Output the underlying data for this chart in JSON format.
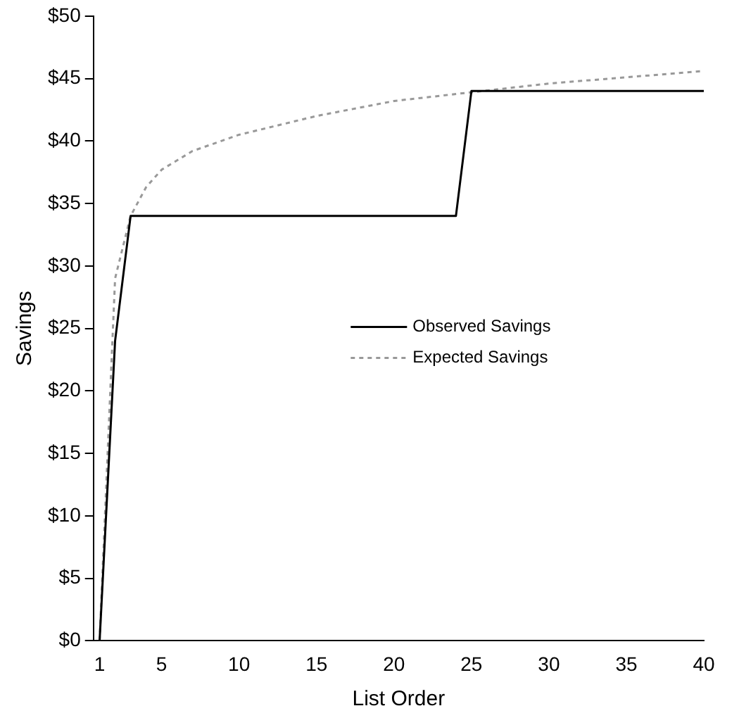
{
  "chart_data": {
    "type": "line",
    "xlabel": "List Order",
    "ylabel": "Savings",
    "xlim": [
      0.6,
      40
    ],
    "xticks": [
      1,
      5,
      10,
      15,
      20,
      25,
      30,
      35,
      40
    ],
    "ylim": [
      0,
      50
    ],
    "yticks": [
      {
        "value": 0,
        "label": "$0"
      },
      {
        "value": 5,
        "label": "$5"
      },
      {
        "value": 10,
        "label": "$10"
      },
      {
        "value": 15,
        "label": "$15"
      },
      {
        "value": 20,
        "label": "$20"
      },
      {
        "value": 25,
        "label": "$25"
      },
      {
        "value": 30,
        "label": "$30"
      },
      {
        "value": 35,
        "label": "$35"
      },
      {
        "value": 40,
        "label": "$40"
      },
      {
        "value": 45,
        "label": "$45"
      },
      {
        "value": 50,
        "label": "$50"
      }
    ],
    "grid": false,
    "legend": "center",
    "marker": "none",
    "series": [
      {
        "name": "Observed Savings",
        "color": "#000000",
        "line_style": "solid",
        "x": [
          1,
          2,
          3,
          24,
          25,
          40
        ],
        "values": [
          0,
          24,
          34,
          34,
          44,
          44
        ]
      },
      {
        "name": "Expected Savings",
        "color": "#999999",
        "line_style": "dotted",
        "x": [
          1,
          2,
          3,
          4,
          5,
          7,
          10,
          15,
          20,
          25,
          30,
          35,
          40
        ],
        "values": [
          0,
          29,
          34,
          36.3,
          37.7,
          39.2,
          40.5,
          42,
          43.2,
          43.9,
          44.6,
          45.1,
          45.6
        ]
      }
    ]
  }
}
